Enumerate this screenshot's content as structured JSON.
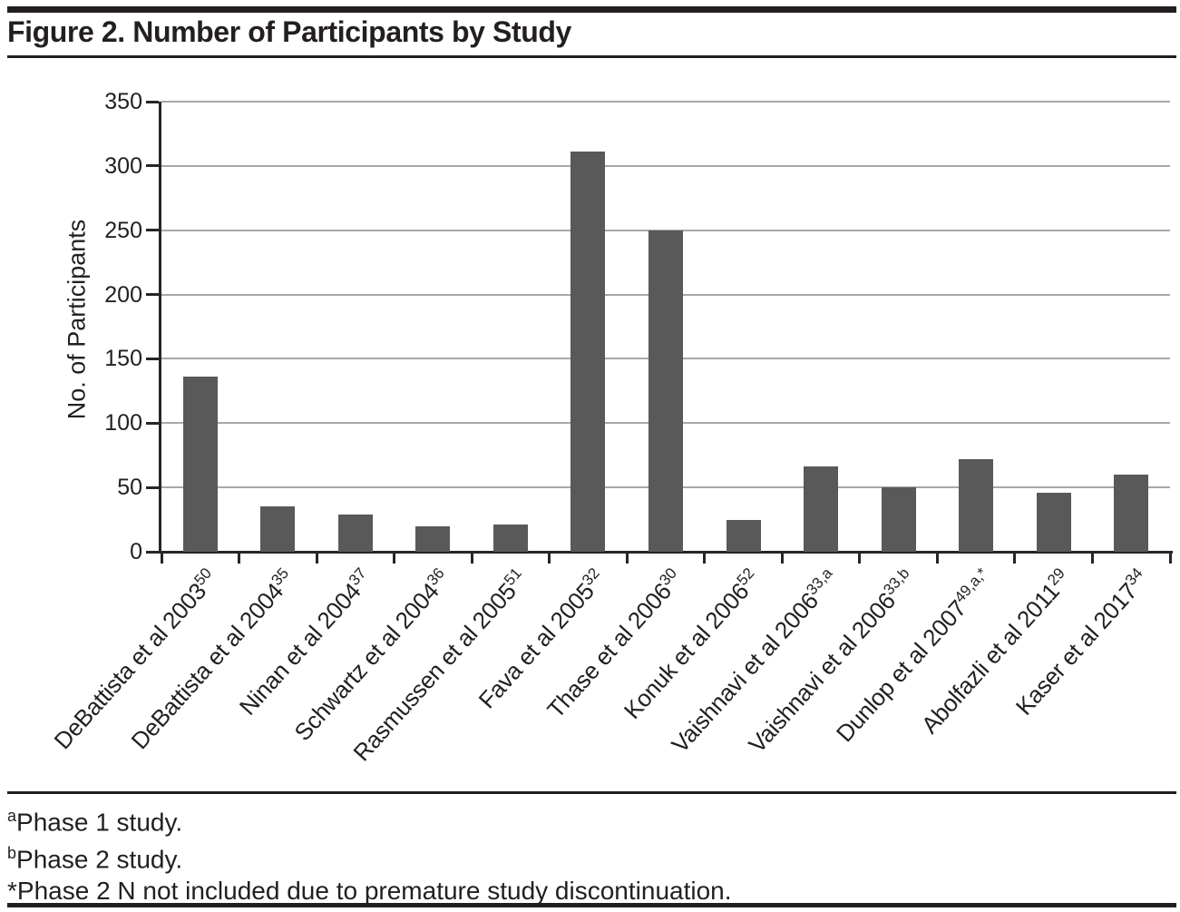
{
  "title": "Figure 2. Number of Participants by Study",
  "chart_data": {
    "type": "bar",
    "title": "Figure 2. Number of Participants by Study",
    "xlabel": "",
    "ylabel": "No. of Participants",
    "ylim": [
      0,
      350
    ],
    "yticks": [
      0,
      50,
      100,
      150,
      200,
      250,
      300,
      350
    ],
    "grid": true,
    "legend": "none",
    "bar_color": "#595959",
    "gridline_color": "#a8a8a8",
    "axis_color": "#262626",
    "text_color": "#231f20",
    "categories": [
      {
        "label": "DeBattista et al 2003",
        "sup": "50"
      },
      {
        "label": "DeBattista et al 2004",
        "sup": "35"
      },
      {
        "label": "Ninan et al 2004",
        "sup": "37"
      },
      {
        "label": "Schwartz et al 2004",
        "sup": "36"
      },
      {
        "label": "Rasmussen et al 2005",
        "sup": "51"
      },
      {
        "label": "Fava et al 2005",
        "sup": "32"
      },
      {
        "label": "Thase et al 2006",
        "sup": "30"
      },
      {
        "label": "Konuk et al 2006",
        "sup": "52"
      },
      {
        "label": "Vaishnavi et al 2006",
        "sup": "33,a"
      },
      {
        "label": "Vaishnavi et al 2006",
        "sup": "33,b"
      },
      {
        "label": "Dunlop et al 2007",
        "sup": "49,a,*"
      },
      {
        "label": "Abolfazli et al 2011",
        "sup": "29"
      },
      {
        "label": "Kaser et al 2017",
        "sup": "34"
      }
    ],
    "values": [
      136,
      35,
      29,
      20,
      21,
      311,
      250,
      25,
      66,
      50,
      72,
      46,
      60
    ]
  },
  "footnotes": [
    {
      "sup": "a",
      "text": "Phase 1 study."
    },
    {
      "sup": "b",
      "text": "Phase 2 study."
    },
    {
      "sup": "",
      "text": "*Phase 2 N not included due to premature study discontinuation."
    }
  ]
}
